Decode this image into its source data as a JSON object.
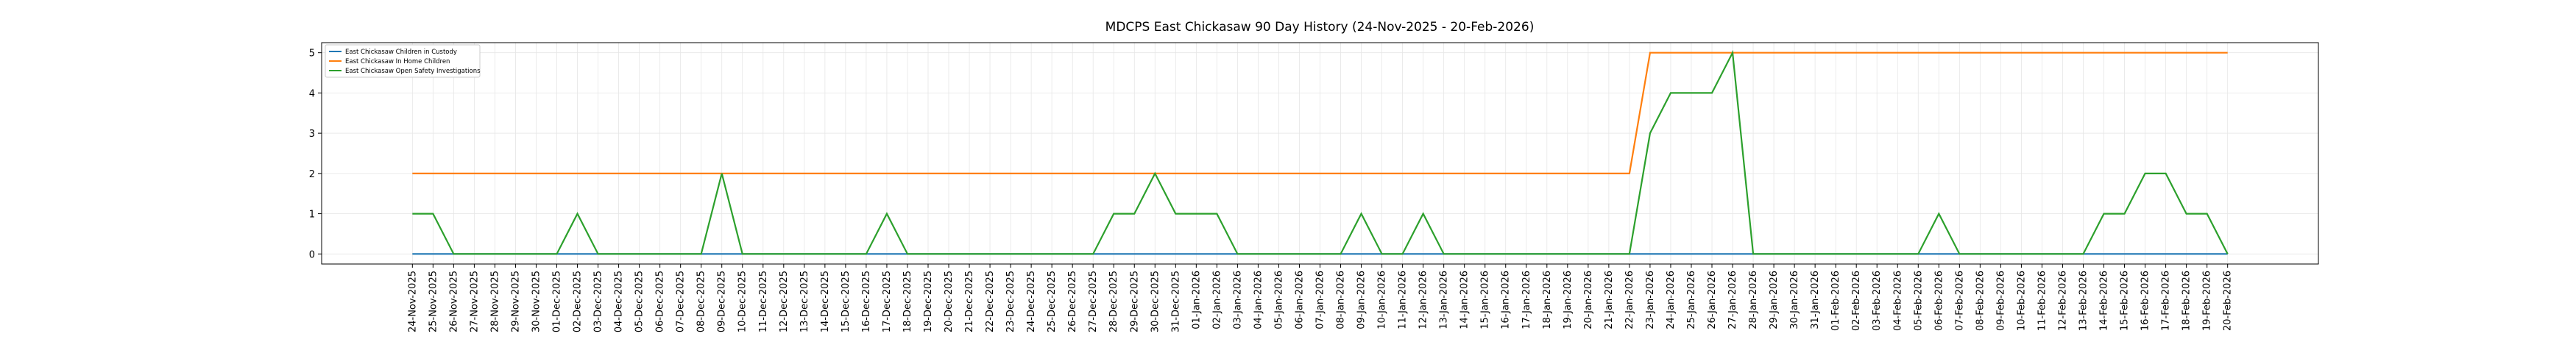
{
  "chart_data": {
    "type": "line",
    "title": "MDCPS East Chickasaw 90 Day History (24-Nov-2025 - 20-Feb-2026)",
    "categories": [
      "24-Nov-2025",
      "25-Nov-2025",
      "26-Nov-2025",
      "27-Nov-2025",
      "28-Nov-2025",
      "29-Nov-2025",
      "30-Nov-2025",
      "01-Dec-2025",
      "02-Dec-2025",
      "03-Dec-2025",
      "04-Dec-2025",
      "05-Dec-2025",
      "06-Dec-2025",
      "07-Dec-2025",
      "08-Dec-2025",
      "09-Dec-2025",
      "10-Dec-2025",
      "11-Dec-2025",
      "12-Dec-2025",
      "13-Dec-2025",
      "14-Dec-2025",
      "15-Dec-2025",
      "16-Dec-2025",
      "17-Dec-2025",
      "18-Dec-2025",
      "19-Dec-2025",
      "20-Dec-2025",
      "21-Dec-2025",
      "22-Dec-2025",
      "23-Dec-2025",
      "24-Dec-2025",
      "25-Dec-2025",
      "26-Dec-2025",
      "27-Dec-2025",
      "28-Dec-2025",
      "29-Dec-2025",
      "30-Dec-2025",
      "31-Dec-2025",
      "01-Jan-2026",
      "02-Jan-2026",
      "03-Jan-2026",
      "04-Jan-2026",
      "05-Jan-2026",
      "06-Jan-2026",
      "07-Jan-2026",
      "08-Jan-2026",
      "09-Jan-2026",
      "10-Jan-2026",
      "11-Jan-2026",
      "12-Jan-2026",
      "13-Jan-2026",
      "14-Jan-2026",
      "15-Jan-2026",
      "16-Jan-2026",
      "17-Jan-2026",
      "18-Jan-2026",
      "19-Jan-2026",
      "20-Jan-2026",
      "21-Jan-2026",
      "22-Jan-2026",
      "23-Jan-2026",
      "24-Jan-2026",
      "25-Jan-2026",
      "26-Jan-2026",
      "27-Jan-2026",
      "28-Jan-2026",
      "29-Jan-2026",
      "30-Jan-2026",
      "31-Jan-2026",
      "01-Feb-2026",
      "02-Feb-2026",
      "03-Feb-2026",
      "04-Feb-2026",
      "05-Feb-2026",
      "06-Feb-2026",
      "07-Feb-2026",
      "08-Feb-2026",
      "09-Feb-2026",
      "10-Feb-2026",
      "11-Feb-2026",
      "12-Feb-2026",
      "13-Feb-2026",
      "14-Feb-2026",
      "15-Feb-2026",
      "16-Feb-2026",
      "17-Feb-2026",
      "18-Feb-2026",
      "19-Feb-2026",
      "20-Feb-2026"
    ],
    "series": [
      {
        "name": "East Chickasaw Children in Custody",
        "color": "#1f77b4",
        "values": [
          0,
          0,
          0,
          0,
          0,
          0,
          0,
          0,
          0,
          0,
          0,
          0,
          0,
          0,
          0,
          0,
          0,
          0,
          0,
          0,
          0,
          0,
          0,
          0,
          0,
          0,
          0,
          0,
          0,
          0,
          0,
          0,
          0,
          0,
          0,
          0,
          0,
          0,
          0,
          0,
          0,
          0,
          0,
          0,
          0,
          0,
          0,
          0,
          0,
          0,
          0,
          0,
          0,
          0,
          0,
          0,
          0,
          0,
          0,
          0,
          0,
          0,
          0,
          0,
          0,
          0,
          0,
          0,
          0,
          0,
          0,
          0,
          0,
          0,
          0,
          0,
          0,
          0,
          0,
          0,
          0,
          0,
          0,
          0,
          0,
          0,
          0,
          0,
          0
        ]
      },
      {
        "name": "East Chickasaw In Home Children",
        "color": "#ff7f0e",
        "values": [
          2,
          2,
          2,
          2,
          2,
          2,
          2,
          2,
          2,
          2,
          2,
          2,
          2,
          2,
          2,
          2,
          2,
          2,
          2,
          2,
          2,
          2,
          2,
          2,
          2,
          2,
          2,
          2,
          2,
          2,
          2,
          2,
          2,
          2,
          2,
          2,
          2,
          2,
          2,
          2,
          2,
          2,
          2,
          2,
          2,
          2,
          2,
          2,
          2,
          2,
          2,
          2,
          2,
          2,
          2,
          2,
          2,
          2,
          2,
          2,
          5,
          5,
          5,
          5,
          5,
          5,
          5,
          5,
          5,
          5,
          5,
          5,
          5,
          5,
          5,
          5,
          5,
          5,
          5,
          5,
          5,
          5,
          5,
          5,
          5,
          5,
          5,
          5,
          5
        ]
      },
      {
        "name": "East Chickasaw Open Safety Investigations",
        "color": "#2ca02c",
        "values": [
          1,
          1,
          0,
          0,
          0,
          0,
          0,
          0,
          1,
          0,
          0,
          0,
          0,
          0,
          0,
          2,
          0,
          0,
          0,
          0,
          0,
          0,
          0,
          1,
          0,
          0,
          0,
          0,
          0,
          0,
          0,
          0,
          0,
          0,
          1,
          1,
          2,
          1,
          1,
          1,
          0,
          0,
          0,
          0,
          0,
          0,
          1,
          0,
          0,
          1,
          0,
          0,
          0,
          0,
          0,
          0,
          0,
          0,
          0,
          0,
          3,
          4,
          4,
          4,
          5,
          0,
          0,
          0,
          0,
          0,
          0,
          0,
          0,
          0,
          1,
          0,
          0,
          0,
          0,
          0,
          0,
          0,
          1,
          1,
          2,
          2,
          1,
          1,
          0
        ]
      }
    ],
    "ylim": [
      -0.25,
      5.25
    ],
    "yticks": [
      0,
      1,
      2,
      3,
      4,
      5
    ],
    "grid": true,
    "legend": "upper-left"
  }
}
